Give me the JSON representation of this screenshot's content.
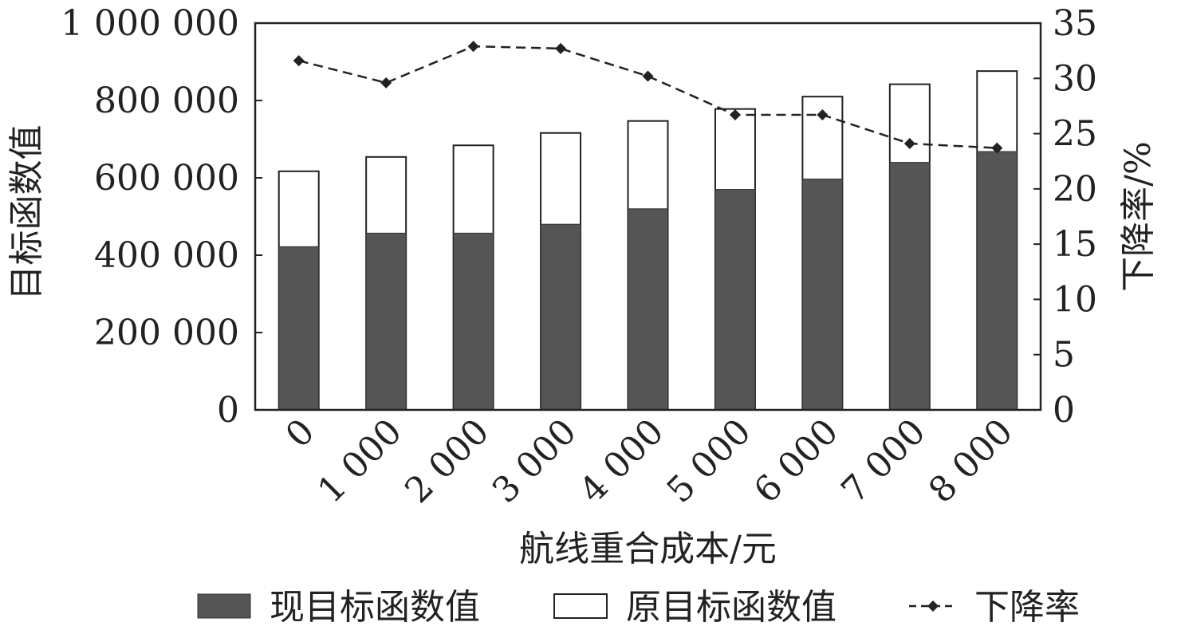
{
  "chart_data": {
    "type": "bar",
    "categories": [
      "0",
      "1 000",
      "2 000",
      "3 000",
      "4 000",
      "5 000",
      "6 000",
      "7 000",
      "8 000"
    ],
    "series": [
      {
        "name": "现目标函数值",
        "kind": "bar",
        "axis": "left",
        "values": [
          422000,
          457000,
          457000,
          480000,
          520000,
          570000,
          597000,
          640000,
          668000
        ],
        "color": "#555555"
      },
      {
        "name": "原目标函数值",
        "kind": "bar",
        "axis": "left",
        "values": [
          617000,
          654000,
          684000,
          716000,
          747000,
          778000,
          810000,
          842000,
          876000
        ],
        "color": "#ffffff"
      },
      {
        "name": "下降率",
        "kind": "line",
        "axis": "right",
        "values": [
          31.6,
          29.6,
          32.9,
          32.7,
          30.2,
          26.7,
          26.7,
          24.1,
          23.7
        ],
        "color": "#222222"
      }
    ],
    "xlabel": "航线重合成本/元",
    "ylabel": "目标函数值",
    "y2label": "下降率/%",
    "ylim": [
      0,
      1000000
    ],
    "y2lim": [
      0,
      35
    ],
    "yticks": [
      {
        "value": 0,
        "label": "0"
      },
      {
        "value": 200000,
        "label": "200 000"
      },
      {
        "value": 400000,
        "label": "400 000"
      },
      {
        "value": 600000,
        "label": "600 000"
      },
      {
        "value": 800000,
        "label": "800 000"
      },
      {
        "value": 1000000,
        "label": "1 000 000"
      }
    ],
    "y2ticks": [
      {
        "value": 0,
        "label": "0"
      },
      {
        "value": 5,
        "label": "5"
      },
      {
        "value": 10,
        "label": "10"
      },
      {
        "value": 15,
        "label": "15"
      },
      {
        "value": 20,
        "label": "20"
      },
      {
        "value": 25,
        "label": "25"
      },
      {
        "value": 30,
        "label": "30"
      },
      {
        "value": 35,
        "label": "35"
      }
    ],
    "grid": false,
    "legend_position": "bottom"
  }
}
